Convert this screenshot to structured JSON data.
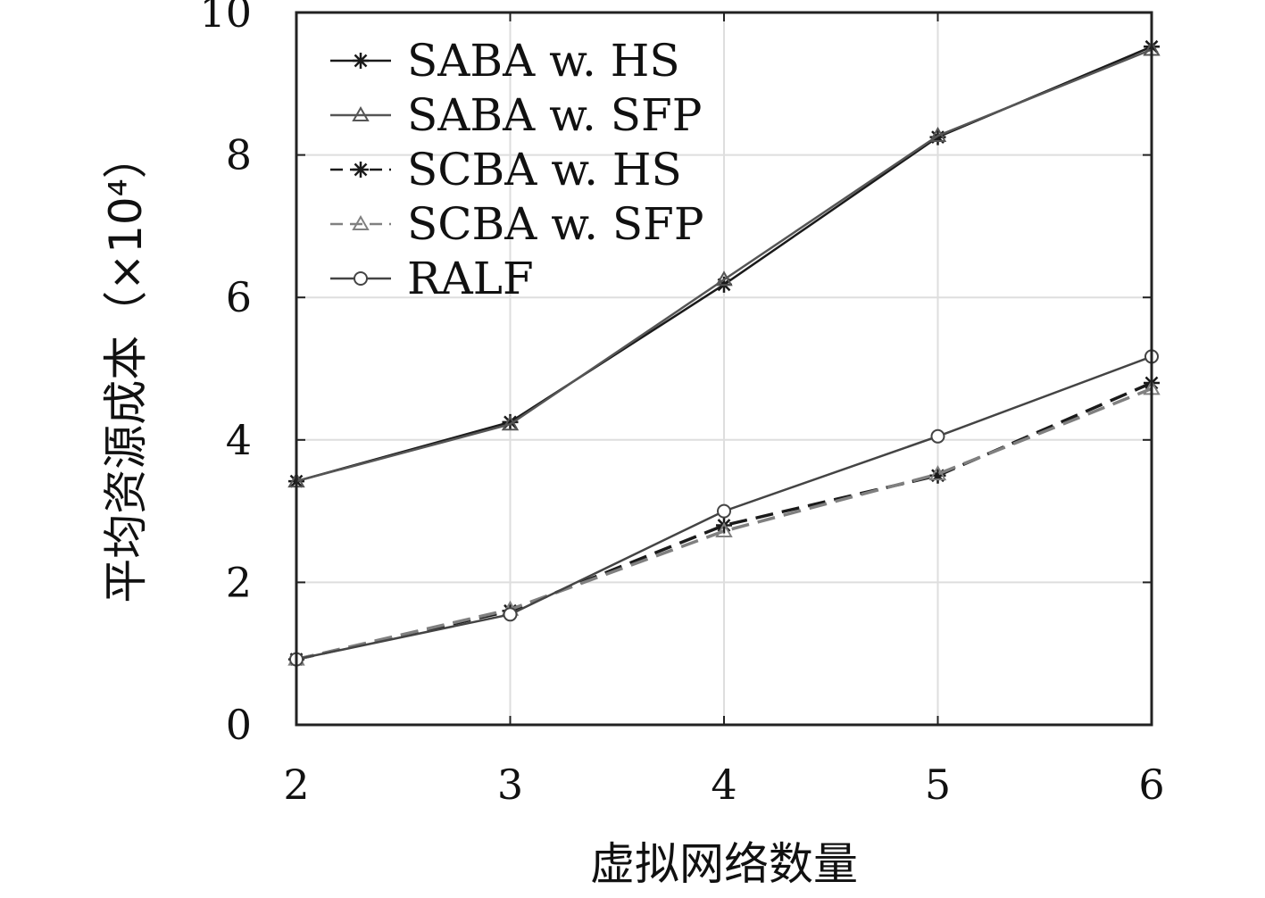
{
  "chart_data": {
    "type": "line",
    "x": [
      2,
      3,
      4,
      5,
      6
    ],
    "xlabel": "虚拟网络数量",
    "ylabel": "平均资源成本（×10⁴）",
    "xlim": [
      2,
      6
    ],
    "ylim": [
      0,
      10
    ],
    "xticks": [
      "2",
      "3",
      "4",
      "5",
      "6"
    ],
    "yticks": [
      "0",
      "2",
      "4",
      "6",
      "8",
      "10"
    ],
    "grid": true,
    "legend_position": "top-left",
    "series": [
      {
        "name": "SABA w. HS",
        "values": [
          3.42,
          4.25,
          6.18,
          8.25,
          9.52
        ],
        "marker": "star",
        "dash": "solid",
        "color": "#1a1a1a"
      },
      {
        "name": "SABA w. SFP",
        "values": [
          3.42,
          4.22,
          6.25,
          8.27,
          9.48
        ],
        "marker": "triangle",
        "dash": "solid",
        "color": "#555555"
      },
      {
        "name": "SCBA w. HS",
        "values": [
          0.92,
          1.6,
          2.8,
          3.5,
          4.8
        ],
        "marker": "star",
        "dash": "dashed",
        "color": "#1a1a1a"
      },
      {
        "name": "SCBA w. SFP",
        "values": [
          0.92,
          1.62,
          2.72,
          3.52,
          4.72
        ],
        "marker": "triangle",
        "dash": "dashed",
        "color": "#808080"
      },
      {
        "name": "RALF",
        "values": [
          0.92,
          1.55,
          3.0,
          4.05,
          5.17
        ],
        "marker": "circle",
        "dash": "solid",
        "color": "#444444"
      }
    ]
  }
}
